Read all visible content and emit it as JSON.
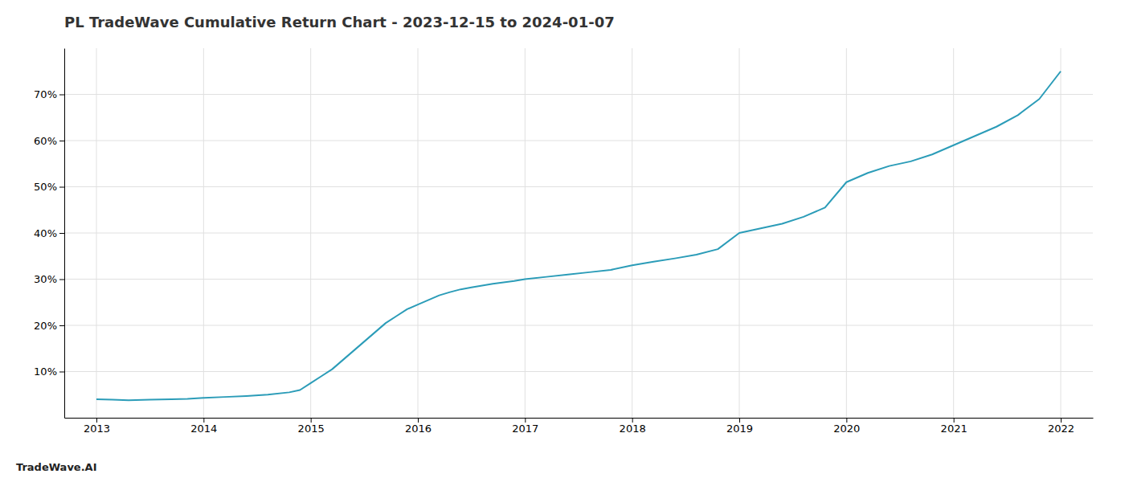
{
  "chart_data": {
    "type": "line",
    "title": "PL TradeWave Cumulative Return Chart - 2023-12-15 to 2024-01-07",
    "annotations": [
      "TradeWave.AI"
    ],
    "color": "#2b9cb8",
    "grid": true,
    "x": [
      2013.0,
      2013.15,
      2013.3,
      2013.5,
      2013.7,
      2013.85,
      2014.0,
      2014.2,
      2014.4,
      2014.6,
      2014.8,
      2014.9,
      2015.0,
      2015.1,
      2015.2,
      2015.3,
      2015.4,
      2015.5,
      2015.6,
      2015.7,
      2015.8,
      2015.9,
      2016.0,
      2016.1,
      2016.2,
      2016.3,
      2016.4,
      2016.5,
      2016.6,
      2016.7,
      2016.8,
      2016.9,
      2017.0,
      2017.2,
      2017.4,
      2017.6,
      2017.8,
      2018.0,
      2018.2,
      2018.4,
      2018.6,
      2018.8,
      2019.0,
      2019.2,
      2019.4,
      2019.6,
      2019.8,
      2020.0,
      2020.2,
      2020.4,
      2020.6,
      2020.8,
      2021.0,
      2021.2,
      2021.4,
      2021.6,
      2021.8,
      2022.0
    ],
    "values": [
      4.0,
      3.9,
      3.8,
      3.9,
      4.0,
      4.1,
      4.3,
      4.5,
      4.7,
      5.0,
      5.5,
      6.0,
      7.5,
      9.0,
      10.5,
      12.5,
      14.5,
      16.5,
      18.5,
      20.5,
      22.0,
      23.5,
      24.5,
      25.5,
      26.5,
      27.2,
      27.8,
      28.2,
      28.6,
      29.0,
      29.3,
      29.6,
      30.0,
      30.5,
      31.0,
      31.5,
      32.0,
      33.0,
      33.8,
      34.5,
      35.3,
      36.5,
      40.0,
      41.0,
      42.0,
      43.5,
      45.5,
      51.0,
      53.0,
      54.5,
      55.5,
      57.0,
      59.0,
      61.0,
      63.0,
      65.5,
      69.0,
      75.0
    ],
    "xlim": [
      2012.7,
      2022.3
    ],
    "xticks": [
      2013,
      2014,
      2015,
      2016,
      2017,
      2018,
      2019,
      2020,
      2021,
      2022
    ],
    "ylim": [
      0,
      80
    ],
    "yticks": [
      {
        "value": 10,
        "label": "10%"
      },
      {
        "value": 20,
        "label": "20%"
      },
      {
        "value": 30,
        "label": "30%"
      },
      {
        "value": 40,
        "label": "40%"
      },
      {
        "value": 50,
        "label": "50%"
      },
      {
        "value": 60,
        "label": "60%"
      },
      {
        "value": 70,
        "label": "70%"
      }
    ]
  }
}
